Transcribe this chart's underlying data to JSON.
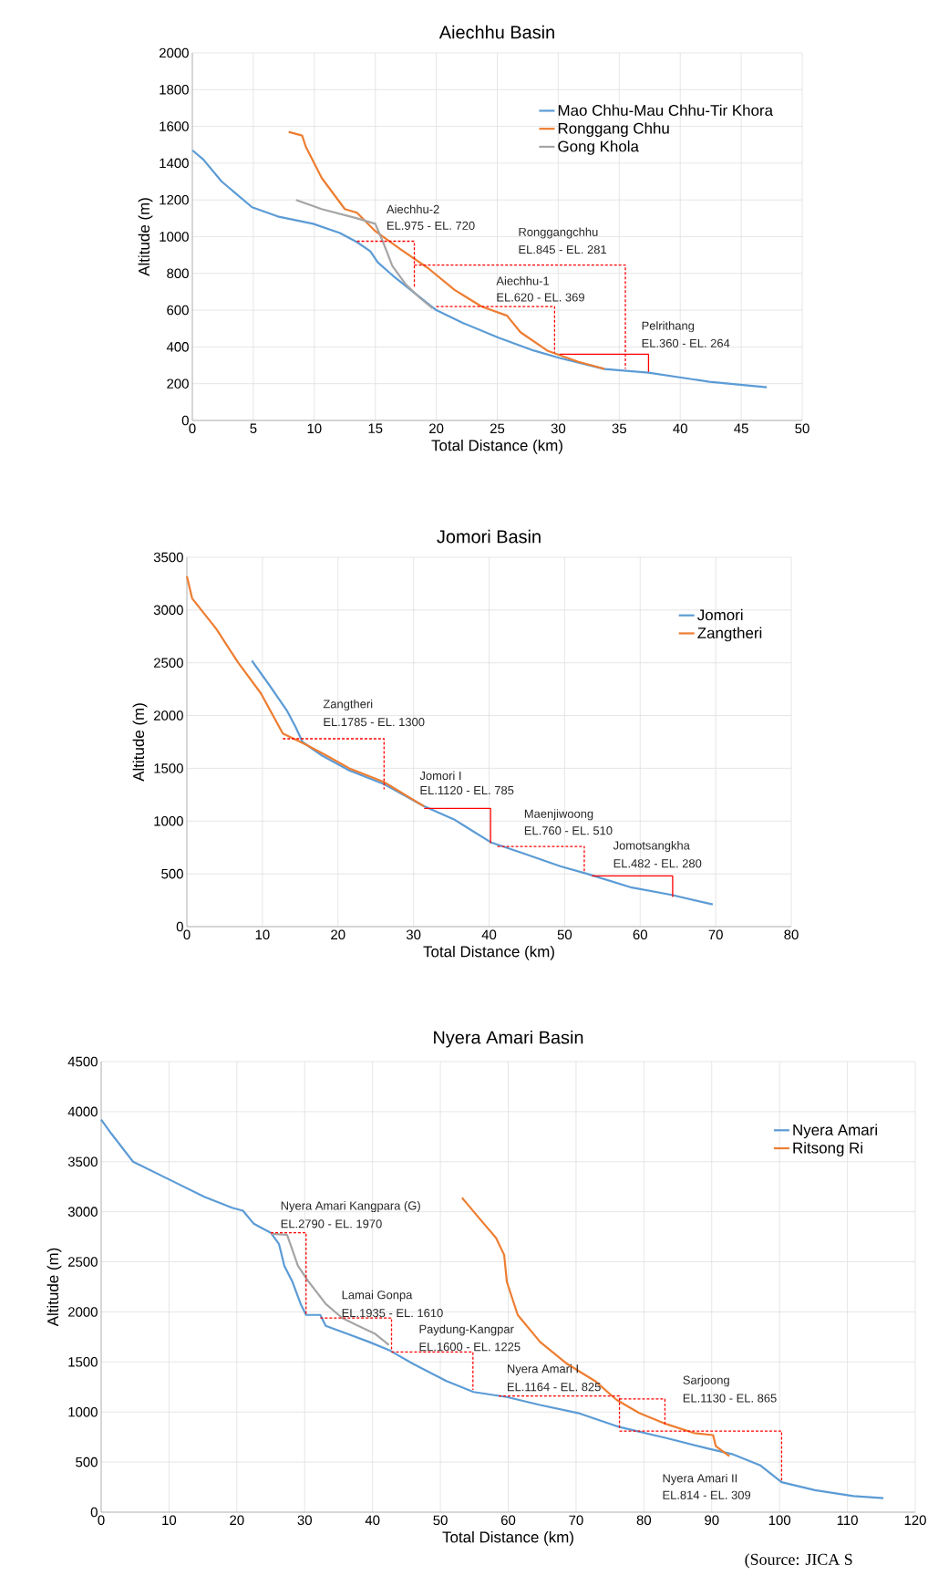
{
  "chart_data": [
    {
      "type": "line",
      "title": "Aiechhu Basin",
      "xlabel": "Total Distance (km)",
      "ylabel": "Altitude (m)",
      "xlim": [
        0,
        50
      ],
      "xticks": [
        0,
        5,
        10,
        15,
        20,
        25,
        30,
        35,
        40,
        45,
        50
      ],
      "ylim": [
        0,
        2000
      ],
      "yticks": [
        0,
        200,
        400,
        600,
        800,
        1000,
        1200,
        1400,
        1600,
        1800,
        2000
      ],
      "grid": true,
      "legend": "top right",
      "series": [
        {
          "name": "Mao Chhu-Mau Chhu-Tir Khora",
          "color": "#5b9bd5",
          "x": [
            0,
            0.9,
            2.4,
            4.9,
            7.0,
            9.9,
            12.1,
            13.5,
            14.6,
            15.2,
            16.4,
            17.9,
            20.0,
            22.2,
            25.1,
            28.0,
            30.1,
            33.8,
            37.4,
            42.4,
            47.1
          ],
          "values": [
            1470,
            1420,
            1300,
            1160,
            1110,
            1070,
            1020,
            970,
            920,
            860,
            790,
            710,
            600,
            530,
            450,
            380,
            340,
            280,
            260,
            210,
            180
          ]
        },
        {
          "name": "Ronggang  Chhu",
          "color": "#ed7d31",
          "x": [
            7.9,
            9.0,
            9.3,
            10.6,
            12.5,
            13.5,
            15.0,
            17.1,
            19.3,
            21.5,
            23.7,
            25.8,
            26.9,
            29.1,
            31.6,
            33.8
          ],
          "values": [
            1570,
            1550,
            1490,
            1320,
            1150,
            1130,
            1030,
            930,
            830,
            710,
            620,
            570,
            480,
            380,
            320,
            280
          ]
        },
        {
          "name": "Gong Khola",
          "color": "#a5a5a5",
          "x": [
            8.5,
            10.6,
            13.5,
            15.0,
            15.7,
            16.4,
            17.5,
            18.6,
            19.7
          ],
          "values": [
            1200,
            1150,
            1100,
            1070,
            960,
            840,
            740,
            670,
            610
          ]
        },
        {
          "color": "#ff0000",
          "line_style": "dashed",
          "x": [
            13.5,
            18.2,
            18.2
          ],
          "values": [
            975,
            975,
            720
          ]
        },
        {
          "color": "#ff0000",
          "line_style": "dashed",
          "x": [
            18.2,
            35.5,
            35.5
          ],
          "values": [
            845,
            845,
            281
          ]
        },
        {
          "color": "#ff0000",
          "line_style": "dashed",
          "x": [
            20.0,
            29.7,
            29.7
          ],
          "values": [
            620,
            620,
            369
          ]
        },
        {
          "color": "#ff0000",
          "line_style": "solid",
          "x": [
            30.1,
            37.4,
            37.4
          ],
          "values": [
            360,
            360,
            264
          ]
        }
      ],
      "annotations": [
        "Aiechhu-2",
        "EL.975 - EL. 720",
        "Ronggangchhu",
        "EL.845 - EL. 281",
        "Aiechhu-1",
        "EL.620 - EL. 369",
        "Pelrithang",
        "EL.360 - EL. 264"
      ]
    },
    {
      "type": "line",
      "title": "Jomori Basin",
      "xlabel": "Total Distance (km)",
      "ylabel": "Altitude (m)",
      "xlim": [
        0,
        80
      ],
      "xticks": [
        0,
        10,
        20,
        30,
        40,
        50,
        60,
        70,
        80
      ],
      "ylim": [
        0,
        3500
      ],
      "yticks": [
        0,
        500,
        1000,
        1500,
        2000,
        2500,
        3000,
        3500
      ],
      "grid": true,
      "legend": "top right",
      "series": [
        {
          "name": "Jomori",
          "color": "#5b9bd5",
          "x": [
            8.6,
            10.9,
            13.3,
            14.4,
            15.3,
            17.9,
            21.5,
            26.1,
            31.4,
            35.5,
            40.2,
            44.3,
            49.5,
            53.0,
            58.9,
            64.2,
            69.6
          ],
          "values": [
            2520,
            2290,
            2040,
            1890,
            1750,
            1620,
            1480,
            1350,
            1140,
            1010,
            800,
            700,
            570,
            500,
            370,
            300,
            210
          ]
        },
        {
          "name": "Zangtheri",
          "color": "#ed7d31",
          "x": [
            0,
            0.7,
            3.9,
            6.8,
            9.8,
            12.7,
            15.6,
            18.5,
            21.5,
            26.1,
            31.4
          ],
          "values": [
            3320,
            3110,
            2820,
            2500,
            2210,
            1830,
            1730,
            1620,
            1500,
            1370,
            1140
          ]
        },
        {
          "color": "#ff0000",
          "line_style": "dashed",
          "x": [
            12.7,
            26.1,
            26.1
          ],
          "values": [
            1780,
            1780,
            1300
          ]
        },
        {
          "color": "#ff0000",
          "line_style": "solid",
          "x": [
            31.4,
            40.2,
            40.2
          ],
          "values": [
            1120,
            1120,
            790
          ]
        },
        {
          "color": "#ff0000",
          "line_style": "dashed",
          "x": [
            41.1,
            52.6,
            52.6
          ],
          "values": [
            760,
            760,
            510
          ]
        },
        {
          "color": "#ff0000",
          "line_style": "solid",
          "x": [
            53.6,
            64.3,
            64.3
          ],
          "values": [
            480,
            480,
            280
          ]
        }
      ],
      "annotations": [
        "Zangtheri",
        "EL.1785 - EL. 1300",
        "Jomori I",
        "EL.1120 - EL. 785",
        "Maenjiwoong",
        "EL.760 - EL. 510",
        "Jomotsangkha",
        "EL.482 - EL. 280"
      ]
    },
    {
      "type": "line",
      "title": "Nyera Amari Basin",
      "xlabel": "Total Distance (km)",
      "ylabel": "Altitude (m)",
      "xlim": [
        0,
        120
      ],
      "xticks": [
        0,
        10,
        20,
        30,
        40,
        50,
        60,
        70,
        80,
        90,
        100,
        110,
        120
      ],
      "ylim": [
        0,
        4500
      ],
      "yticks": [
        0,
        500,
        1000,
        1500,
        2000,
        2500,
        3000,
        3500,
        4000,
        4500
      ],
      "grid": true,
      "legend": "top right",
      "series": [
        {
          "name": "Nyera Amari",
          "color": "#5b9bd5",
          "x": [
            0,
            1.5,
            4.7,
            10.4,
            15.2,
            19.3,
            20.9,
            22.5,
            25.0,
            26.2,
            27.0,
            28.2,
            29.4,
            30.2,
            32.3,
            33.1,
            36.3,
            39.5,
            42.4,
            46.0,
            50.9,
            54.9,
            59.8,
            64.7,
            70.3,
            76.4,
            83.3,
            89.8,
            93.0,
            97.1,
            100.3,
            105.2,
            110.9,
            115.3
          ],
          "values": [
            3920,
            3780,
            3500,
            3310,
            3150,
            3040,
            3010,
            2880,
            2790,
            2680,
            2460,
            2300,
            2080,
            1970,
            1970,
            1860,
            1780,
            1700,
            1620,
            1480,
            1310,
            1200,
            1150,
            1070,
            990,
            850,
            740,
            630,
            580,
            470,
            300,
            220,
            160,
            140
          ]
        },
        {
          "name": "Ritsong Ri",
          "color": "#ed7d31",
          "x": [
            53.2,
            55.8,
            58.2,
            59.4,
            59.8,
            61.4,
            64.7,
            68.7,
            72.8,
            76.0,
            79.3,
            83.3,
            87.4,
            90.2,
            90.6,
            92.6
          ],
          "values": [
            3140,
            2930,
            2740,
            2570,
            2300,
            1970,
            1700,
            1480,
            1310,
            1120,
            990,
            880,
            790,
            770,
            660,
            560
          ]
        },
        {
          "color": "#a5a5a5",
          "x": [
            25.0,
            27.4,
            29.0,
            30.6,
            33.1,
            35.5,
            37.9,
            40.4,
            42.4
          ],
          "values": [
            2780,
            2770,
            2460,
            2300,
            2080,
            1940,
            1860,
            1780,
            1670
          ]
        },
        {
          "color": "#ff0000",
          "line_style": "dashed",
          "x": [
            25.0,
            30.2,
            30.2
          ],
          "values": [
            2790,
            2790,
            1970
          ]
        },
        {
          "color": "#ff0000",
          "line_style": "dashed",
          "x": [
            32.3,
            42.8,
            42.8
          ],
          "values": [
            1940,
            1940,
            1610
          ]
        },
        {
          "color": "#ff0000",
          "line_style": "dashed",
          "x": [
            42.8,
            54.8,
            54.8
          ],
          "values": [
            1600,
            1600,
            1220
          ]
        },
        {
          "color": "#ff0000",
          "line_style": "dashed",
          "x": [
            58.6,
            76.4,
            76.4
          ],
          "values": [
            1160,
            1160,
            830
          ]
        },
        {
          "color": "#ff0000",
          "line_style": "dashed",
          "x": [
            76.4,
            83.1,
            83.1
          ],
          "values": [
            1130,
            1130,
            870
          ]
        },
        {
          "color": "#ff0000",
          "line_style": "dashed",
          "x": [
            76.4,
            100.3,
            100.3
          ],
          "values": [
            810,
            810,
            310
          ]
        }
      ],
      "annotations": [
        "Nyera Amari Kangpara (G)",
        "EL.2790 - EL. 1970",
        "Lamai Gonpa",
        "EL.1935 - EL. 1610",
        "Paydung-Kangpar",
        "EL.1600 - EL. 1225",
        "Nyera Amari  I",
        "EL.1164 - EL. 825",
        "Sarjoong",
        "EL.1130 - EL. 865",
        "Nyera Amari  II",
        "EL.814 - EL. 309",
        "(Source: JICA S"
      ]
    }
  ]
}
